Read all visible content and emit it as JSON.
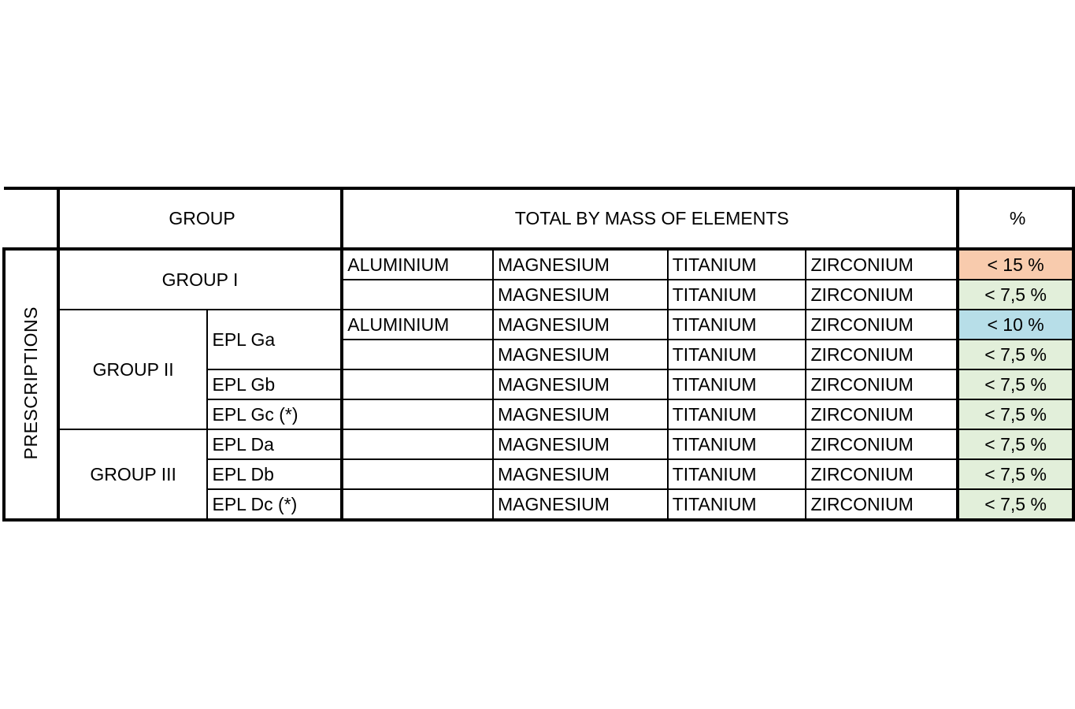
{
  "header": {
    "group": "GROUP",
    "total": "TOTAL BY MASS OF ELEMENTS",
    "percent": "%"
  },
  "side_label": "PRESCRIPTIONS",
  "groups": {
    "g1": "GROUP I",
    "g2": "GROUP II",
    "g3": "GROUP III"
  },
  "sub": [
    "EPL Ga",
    "EPL Gb",
    "EPL Gc (*)",
    "EPL Da",
    "EPL Db",
    "EPL Dc (*)"
  ],
  "elements": {
    "al": "ALUMINIUM",
    "mg": "MAGNESIUM",
    "ti": "TITANIUM",
    "zr": "ZIRCONIUM"
  },
  "values": [
    "< 15 %",
    "< 7,5 %",
    "< 10 %",
    "< 7,5 %",
    "< 7,5 %",
    "< 7,5 %",
    "< 7,5 %",
    "< 7,5 %",
    "< 7,5 %"
  ],
  "colors": {
    "orange": "#F8CBAD",
    "green": "#E2EFDA",
    "blue": "#B7DEE8"
  }
}
